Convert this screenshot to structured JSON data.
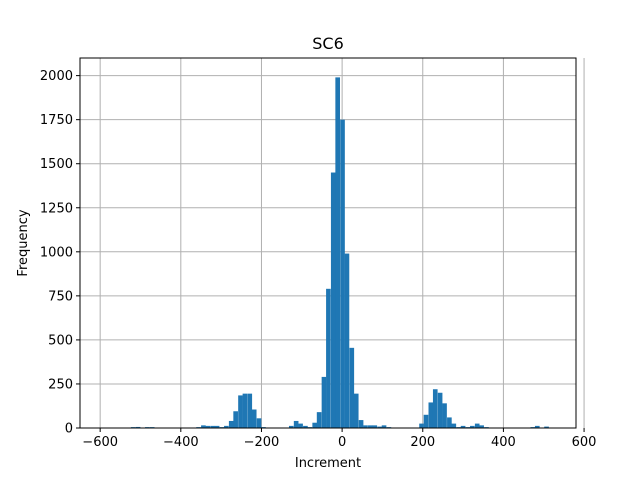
{
  "chart_data": {
    "type": "bar",
    "title": "SC6",
    "xlabel": "Increment",
    "ylabel": "Frequency",
    "xlim": [
      -650,
      580
    ],
    "ylim": [
      0,
      2100
    ],
    "xticks": [
      -600,
      -400,
      -200,
      0,
      200,
      400,
      600
    ],
    "yticks": [
      0,
      250,
      500,
      750,
      1000,
      1250,
      1500,
      1750,
      2000
    ],
    "grid": true,
    "bar_color": "#1f77b4",
    "bin_width": 11.5,
    "bins": [
      {
        "x": -518,
        "y": 5
      },
      {
        "x": -506,
        "y": 6
      },
      {
        "x": -483,
        "y": 5
      },
      {
        "x": -471,
        "y": 5
      },
      {
        "x": -356,
        "y": 5
      },
      {
        "x": -344,
        "y": 15
      },
      {
        "x": -333,
        "y": 12
      },
      {
        "x": -321,
        "y": 12
      },
      {
        "x": -310,
        "y": 12
      },
      {
        "x": -298,
        "y": 5
      },
      {
        "x": -287,
        "y": 12
      },
      {
        "x": -275,
        "y": 40
      },
      {
        "x": -264,
        "y": 95
      },
      {
        "x": -252,
        "y": 185
      },
      {
        "x": -241,
        "y": 195
      },
      {
        "x": -229,
        "y": 195
      },
      {
        "x": -218,
        "y": 105
      },
      {
        "x": -206,
        "y": 55
      },
      {
        "x": -195,
        "y": 5
      },
      {
        "x": -126,
        "y": 12
      },
      {
        "x": -114,
        "y": 40
      },
      {
        "x": -103,
        "y": 25
      },
      {
        "x": -91,
        "y": 12
      },
      {
        "x": -80,
        "y": 5
      },
      {
        "x": -68,
        "y": 30
      },
      {
        "x": -57,
        "y": 90
      },
      {
        "x": -45,
        "y": 290
      },
      {
        "x": -34,
        "y": 790
      },
      {
        "x": -22,
        "y": 1450
      },
      {
        "x": -11,
        "y": 1990
      },
      {
        "x": 1,
        "y": 1750
      },
      {
        "x": 12,
        "y": 990
      },
      {
        "x": 24,
        "y": 455
      },
      {
        "x": 35,
        "y": 195
      },
      {
        "x": 47,
        "y": 45
      },
      {
        "x": 58,
        "y": 15
      },
      {
        "x": 70,
        "y": 15
      },
      {
        "x": 81,
        "y": 15
      },
      {
        "x": 93,
        "y": 8
      },
      {
        "x": 104,
        "y": 15
      },
      {
        "x": 116,
        "y": 5
      },
      {
        "x": 197,
        "y": 25
      },
      {
        "x": 208,
        "y": 75
      },
      {
        "x": 220,
        "y": 145
      },
      {
        "x": 231,
        "y": 220
      },
      {
        "x": 243,
        "y": 200
      },
      {
        "x": 254,
        "y": 140
      },
      {
        "x": 266,
        "y": 60
      },
      {
        "x": 277,
        "y": 25
      },
      {
        "x": 289,
        "y": 5
      },
      {
        "x": 300,
        "y": 12
      },
      {
        "x": 312,
        "y": 5
      },
      {
        "x": 323,
        "y": 12
      },
      {
        "x": 335,
        "y": 25
      },
      {
        "x": 346,
        "y": 15
      },
      {
        "x": 358,
        "y": 5
      },
      {
        "x": 473,
        "y": 5
      },
      {
        "x": 484,
        "y": 12
      },
      {
        "x": 507,
        "y": 8
      }
    ]
  }
}
